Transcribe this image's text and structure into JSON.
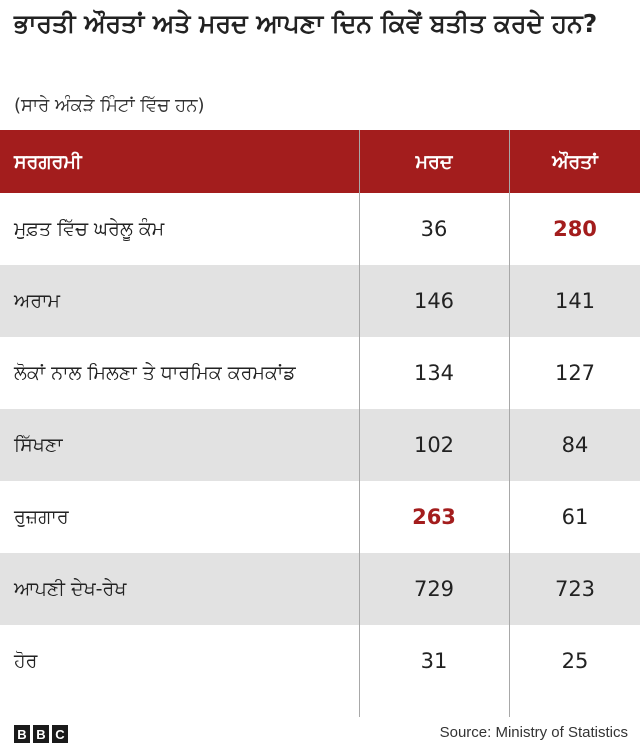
{
  "title": "ਭਾਰਤੀ ਔਰਤਾਂ ਅਤੇ ਮਰਦ ਆਪਣਾ ਦਿਨ ਕਿਵੇਂ ਬਤੀਤ ਕਰਦੇ ਹਨ?",
  "subtitle": "(ਸਾਰੇ ਅੰਕੜੇ ਮਿੰਟਾਂ ਵਿੱਚ ਹਨ)",
  "columns": [
    "ਸਰਗਰਮੀ",
    "ਮਰਦ",
    "ਔਰਤਾਂ"
  ],
  "rows": [
    {
      "activity": "ਮੁਫ਼ਤ ਵਿੱਚ ਘਰੇਲੂ ਕੰਮ",
      "men": "36",
      "women": "280"
    },
    {
      "activity": "ਅਰਾਮ",
      "men": "146",
      "women": "141"
    },
    {
      "activity": "ਲੋਕਾਂ ਨਾਲ ਮਿਲਣਾ ਤੇ ਧਾਰਮਿਕ ਕਰਮਕਾਂਡ",
      "men": "134",
      "women": "127"
    },
    {
      "activity": "ਸਿੱਖਣਾ",
      "men": "102",
      "women": "84"
    },
    {
      "activity": "ਰੁਜ਼ਗਾਰ",
      "men": "263",
      "women": "61"
    },
    {
      "activity": "ਆਪਣੀ ਦੇਖ-ਰੇਖ",
      "men": "729",
      "women": "723"
    },
    {
      "activity": "ਹੋਰ",
      "men": "31",
      "women": "25"
    }
  ],
  "highlight_color": "#a31d1d",
  "header_color": "#a31d1d",
  "logo": "BBC",
  "source": "Source: Ministry of Statistics",
  "chart_data": {
    "type": "table",
    "title": "ਭਾਰਤੀ ਔਰਤਾਂ ਅਤੇ ਮਰਦ ਆਪਣਾ ਦਿਨ ਕਿਵੇਂ ਬਤੀਤ ਕਰਦੇ ਹਨ?",
    "subtitle": "(ਸਾਰੇ ਅੰਕੜੇ ਮਿੰਟਾਂ ਵਿੱਚ ਹਨ)",
    "categories": [
      "ਮੁਫ਼ਤ ਵਿੱਚ ਘਰੇਲੂ ਕੰਮ",
      "ਅਰਾਮ",
      "ਲੋਕਾਂ ਨਾਲ ਮਿਲਣਾ ਤੇ ਧਾਰਮਿਕ ਕਰਮਕਾਂਡ",
      "ਸਿੱਖਣਾ",
      "ਰੁਜ਼ਗਾਰ",
      "ਆਪਣੀ ਦੇਖ-ਰੇਖ",
      "ਹੋਰ"
    ],
    "series": [
      {
        "name": "ਮਰਦ",
        "values": [
          36,
          146,
          134,
          102,
          263,
          729,
          31
        ]
      },
      {
        "name": "ਔਰਤਾਂ",
        "values": [
          280,
          141,
          127,
          84,
          61,
          723,
          25
        ]
      }
    ],
    "highlighted": [
      {
        "series": "ਔਰਤਾਂ",
        "category": "ਮੁਫ਼ਤ ਵਿੱਚ ਘਰੇਲੂ ਕੰਮ"
      },
      {
        "series": "ਮਰਦ",
        "category": "ਰੁਜ਼ਗਾਰ"
      }
    ]
  }
}
